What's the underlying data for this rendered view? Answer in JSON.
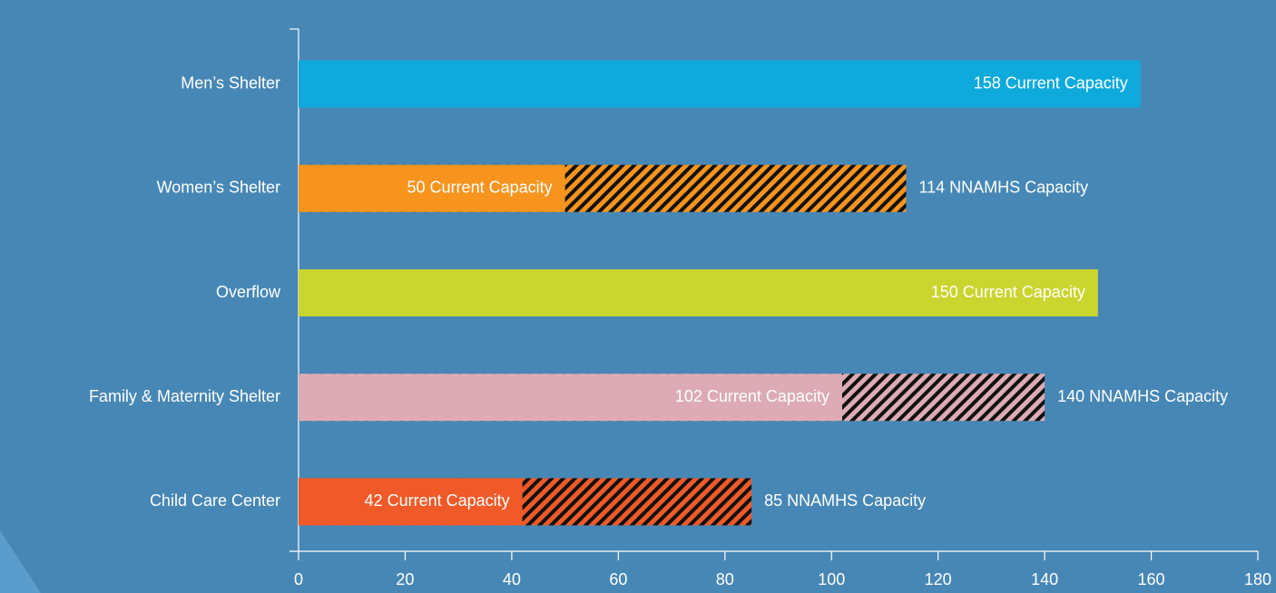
{
  "chart_data": {
    "type": "bar",
    "orientation": "horizontal",
    "categories": [
      "Men’s Shelter",
      "Women’s Shelter",
      "Overflow",
      "Family & Maternity Shelter",
      "Child Care Center"
    ],
    "series": [
      {
        "values": [
          158,
          50,
          150,
          102,
          42
        ],
        "value_labels": [
          "158 Current Capacity",
          "50 Current Capacity",
          "150 Current Capacity",
          "102 Current Capacity",
          "42 Current Capacity"
        ],
        "colors": [
          "#0eaadc",
          "#f7941d",
          "#cbd52f",
          "#dcabb5",
          "#f05a28"
        ]
      },
      {
        "values": [
          null,
          114,
          null,
          140,
          85
        ],
        "value_labels": [
          null,
          "114 NNAMHS Capacity",
          null,
          "140 NNAMHS Capacity",
          "85 NNAMHS Capacity"
        ],
        "colors": [
          "#0eaadc",
          "#f7941d",
          "#cbd52f",
          "#dcabb5",
          "#f05a28"
        ],
        "hatch": true
      }
    ],
    "xlim": [
      0,
      180
    ],
    "xticks": [
      0,
      20,
      40,
      60,
      80,
      100,
      120,
      140,
      160,
      180
    ]
  }
}
